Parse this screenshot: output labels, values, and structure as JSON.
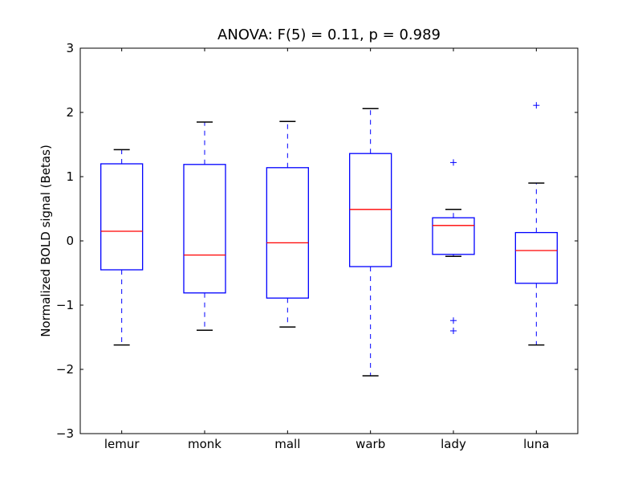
{
  "chart_data": {
    "type": "box",
    "title": "ANOVA: F(5) = 0.11, p = 0.989",
    "xlabel": "",
    "ylabel": "Normalized BOLD signal (Betas)",
    "ylim": [
      -3,
      3
    ],
    "yticks": [
      "3",
      "2",
      "1",
      "0",
      "−1",
      "−2",
      "−3"
    ],
    "ytick_values": [
      3,
      2,
      1,
      0,
      -1,
      -2,
      -3
    ],
    "grid": false,
    "colors": {
      "box": "#0000ff",
      "median": "#ff0000",
      "cap": "#000000",
      "flier": "#0000ff"
    },
    "categories": [
      "lemur",
      "monk",
      "mall",
      "warb",
      "lady",
      "luna"
    ],
    "boxes": [
      {
        "whisker_low": -1.62,
        "q1": -0.45,
        "median": 0.15,
        "q3": 1.2,
        "whisker_high": 1.42,
        "fliers": []
      },
      {
        "whisker_low": -1.39,
        "q1": -0.81,
        "median": -0.22,
        "q3": 1.19,
        "whisker_high": 1.85,
        "fliers": []
      },
      {
        "whisker_low": -1.34,
        "q1": -0.89,
        "median": -0.03,
        "q3": 1.14,
        "whisker_high": 1.86,
        "fliers": []
      },
      {
        "whisker_low": -2.1,
        "q1": -0.4,
        "median": 0.49,
        "q3": 1.36,
        "whisker_high": 2.06,
        "fliers": []
      },
      {
        "whisker_low": -0.24,
        "q1": -0.21,
        "median": 0.24,
        "q3": 0.36,
        "whisker_high": 0.49,
        "fliers": [
          1.22,
          -1.24,
          -1.4
        ]
      },
      {
        "whisker_low": -1.62,
        "q1": -0.66,
        "median": -0.15,
        "q3": 0.13,
        "whisker_high": 0.9,
        "fliers": [
          2.11
        ]
      }
    ]
  }
}
